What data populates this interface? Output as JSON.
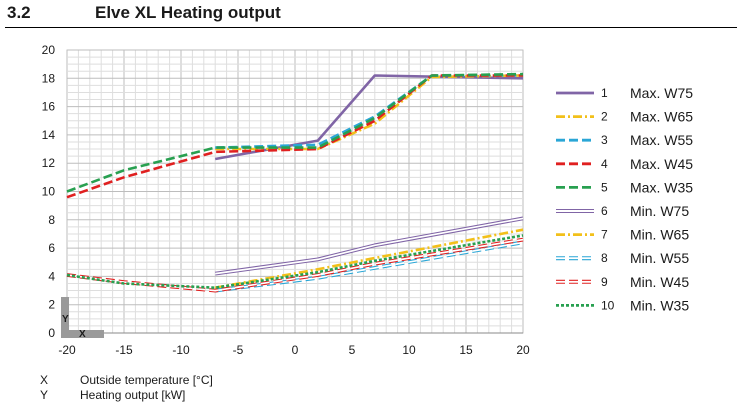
{
  "section": {
    "number": "3.2",
    "title": "Elve XL Heating output"
  },
  "axis_markers": {
    "x": "X",
    "y": "Y"
  },
  "axis_key": [
    {
      "letter": "X",
      "description": "Outside temperature [°C]"
    },
    {
      "letter": "Y",
      "description": "Heating output [kW]"
    }
  ],
  "chart_data": {
    "type": "line",
    "title": "",
    "xlabel": "X",
    "ylabel": "Y",
    "xlim": [
      -20,
      20
    ],
    "ylim": [
      0,
      20
    ],
    "xticks": [
      -20,
      -15,
      -10,
      -5,
      0,
      5,
      10,
      15,
      20
    ],
    "yticks": [
      0,
      2,
      4,
      6,
      8,
      10,
      12,
      14,
      16,
      18,
      20
    ],
    "grid": true,
    "legend_position": "right",
    "series": [
      {
        "id": "1",
        "name": "Max. W75",
        "color": "#8065a6",
        "style": "solid",
        "outline": false,
        "points": [
          [
            -7,
            12.3
          ],
          [
            2,
            13.6
          ],
          [
            7,
            18.2
          ],
          [
            20,
            18.0
          ]
        ]
      },
      {
        "id": "2",
        "name": "Max. W65",
        "color": "#f2c01a",
        "style": "dashdot",
        "outline": false,
        "points": [
          [
            -7,
            13.0
          ],
          [
            2,
            13.0
          ],
          [
            7,
            14.8
          ],
          [
            12,
            18.1
          ],
          [
            20,
            18.2
          ]
        ]
      },
      {
        "id": "3",
        "name": "Max. W55",
        "color": "#2aa6d6",
        "style": "dashed",
        "outline": false,
        "points": [
          [
            -7,
            13.1
          ],
          [
            2,
            13.3
          ],
          [
            7,
            15.3
          ],
          [
            12,
            18.2
          ],
          [
            20,
            18.2
          ]
        ]
      },
      {
        "id": "4",
        "name": "Max. W45",
        "color": "#e02020",
        "style": "dashed",
        "outline": false,
        "points": [
          [
            -20,
            9.6
          ],
          [
            -15,
            11.0
          ],
          [
            -7,
            12.8
          ],
          [
            2,
            13.0
          ],
          [
            7,
            15.0
          ],
          [
            12,
            18.2
          ],
          [
            20,
            18.2
          ]
        ]
      },
      {
        "id": "5",
        "name": "Max. W35",
        "color": "#28a050",
        "style": "dashed",
        "outline": false,
        "points": [
          [
            -20,
            10.0
          ],
          [
            -15,
            11.5
          ],
          [
            -7,
            13.1
          ],
          [
            2,
            13.1
          ],
          [
            7,
            15.2
          ],
          [
            12,
            18.2
          ],
          [
            20,
            18.3
          ]
        ]
      },
      {
        "id": "6",
        "name": "Min. W75",
        "color": "#8065a6",
        "style": "solid",
        "outline": true,
        "points": [
          [
            -7,
            4.2
          ],
          [
            2,
            5.2
          ],
          [
            7,
            6.2
          ],
          [
            20,
            8.1
          ]
        ]
      },
      {
        "id": "7",
        "name": "Min. W65",
        "color": "#f2c01a",
        "style": "dashdot",
        "outline": false,
        "points": [
          [
            -7,
            3.2
          ],
          [
            2,
            4.5
          ],
          [
            7,
            5.3
          ],
          [
            20,
            7.3
          ]
        ]
      },
      {
        "id": "8",
        "name": "Min. W55",
        "color": "#2aa6d6",
        "style": "dashed",
        "outline": true,
        "points": [
          [
            -7,
            3.0
          ],
          [
            2,
            3.9
          ],
          [
            7,
            4.6
          ],
          [
            20,
            6.4
          ]
        ]
      },
      {
        "id": "9",
        "name": "Min. W45",
        "color": "#e02020",
        "style": "dashed",
        "outline": true,
        "points": [
          [
            -20,
            4.1
          ],
          [
            -15,
            3.6
          ],
          [
            -7,
            3.0
          ],
          [
            2,
            4.1
          ],
          [
            7,
            4.9
          ],
          [
            20,
            6.6
          ]
        ]
      },
      {
        "id": "10",
        "name": "Min. W35",
        "color": "#28a050",
        "style": "dotted",
        "outline": false,
        "points": [
          [
            -20,
            4.1
          ],
          [
            -15,
            3.5
          ],
          [
            -7,
            3.2
          ],
          [
            2,
            4.3
          ],
          [
            7,
            5.1
          ],
          [
            20,
            6.9
          ]
        ]
      }
    ]
  }
}
